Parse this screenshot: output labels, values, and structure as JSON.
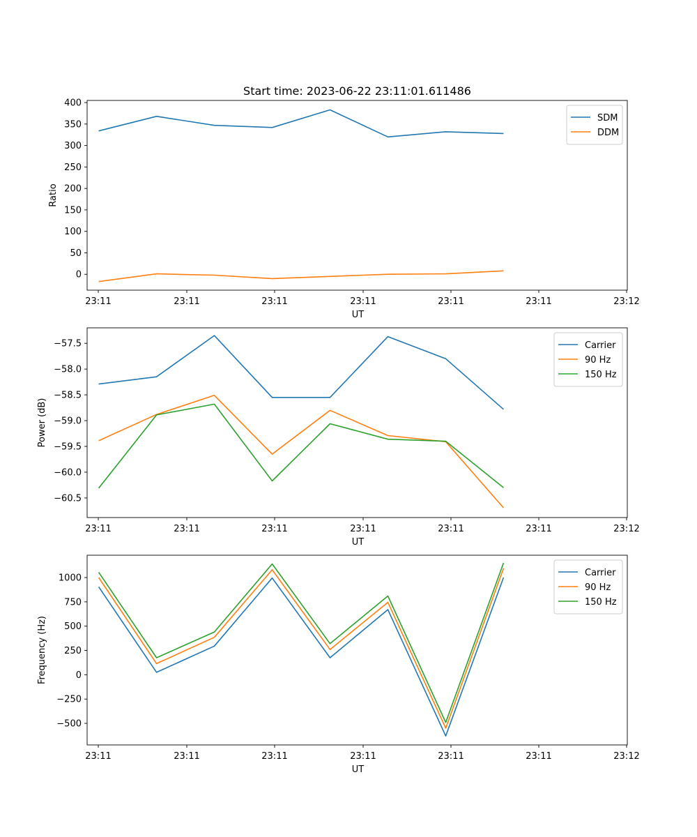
{
  "chart_data": [
    {
      "type": "line",
      "title": "Start time: 2023-06-22 23:11:01.611486",
      "xlabel": "UT",
      "ylabel": "Ratio",
      "x_ticks": [
        "23:11",
        "23:11",
        "23:11",
        "23:11",
        "23:11",
        "23:11",
        "23:12"
      ],
      "y_ticks": [
        0,
        50,
        100,
        150,
        200,
        250,
        300,
        350,
        400
      ],
      "ylim": [
        -37,
        405
      ],
      "legend": "top-right",
      "grid": false,
      "x": [
        1,
        2,
        3,
        4,
        5,
        6,
        7,
        8
      ],
      "series": [
        {
          "name": "SDM",
          "color": "#1f77b4",
          "values": [
            334,
            368,
            347,
            342,
            383,
            320,
            332,
            328
          ]
        },
        {
          "name": "DDM",
          "color": "#ff7f0e",
          "values": [
            -17,
            1,
            -2,
            -10,
            -5,
            0,
            1,
            8
          ]
        }
      ]
    },
    {
      "type": "line",
      "title": "",
      "xlabel": "UT",
      "ylabel": "Power (dB)",
      "x_ticks": [
        "23:11",
        "23:11",
        "23:11",
        "23:11",
        "23:11",
        "23:11",
        "23:12"
      ],
      "y_ticks": [
        -60.5,
        -60.0,
        -59.5,
        -59.0,
        -58.5,
        -58.0,
        -57.5
      ],
      "ylim": [
        -60.88,
        -57.2
      ],
      "legend": "top-right",
      "grid": false,
      "x": [
        1,
        2,
        3,
        4,
        5,
        6,
        7,
        8
      ],
      "series": [
        {
          "name": "Carrier",
          "color": "#1f77b4",
          "values": [
            -58.29,
            -58.15,
            -57.35,
            -58.55,
            -58.55,
            -57.37,
            -57.8,
            -58.78
          ]
        },
        {
          "name": "90 Hz",
          "color": "#ff7f0e",
          "values": [
            -59.39,
            -58.88,
            -58.51,
            -59.65,
            -58.8,
            -59.29,
            -59.41,
            -60.69
          ]
        },
        {
          "name": "150 Hz",
          "color": "#2ca02c",
          "values": [
            -60.31,
            -58.89,
            -58.68,
            -60.17,
            -59.06,
            -59.36,
            -59.4,
            -60.3
          ]
        }
      ]
    },
    {
      "type": "line",
      "title": "",
      "xlabel": "UT",
      "ylabel": "Frequency (Hz)",
      "x_ticks": [
        "23:11",
        "23:11",
        "23:11",
        "23:11",
        "23:11",
        "23:11",
        "23:12"
      ],
      "y_ticks": [
        -500,
        -250,
        0,
        250,
        500,
        750,
        1000
      ],
      "ylim": [
        -722,
        1230
      ],
      "legend": "top-right",
      "grid": false,
      "x": [
        1,
        2,
        3,
        4,
        5,
        6,
        7,
        8
      ],
      "series": [
        {
          "name": "Carrier",
          "color": "#1f77b4",
          "values": [
            905,
            25,
            295,
            995,
            175,
            670,
            -630,
            1000
          ]
        },
        {
          "name": "90 Hz",
          "color": "#ff7f0e",
          "values": [
            1000,
            115,
            385,
            1080,
            260,
            745,
            -550,
            1095
          ]
        },
        {
          "name": "150 Hz",
          "color": "#2ca02c",
          "values": [
            1055,
            175,
            440,
            1140,
            320,
            810,
            -490,
            1150
          ]
        }
      ]
    }
  ]
}
